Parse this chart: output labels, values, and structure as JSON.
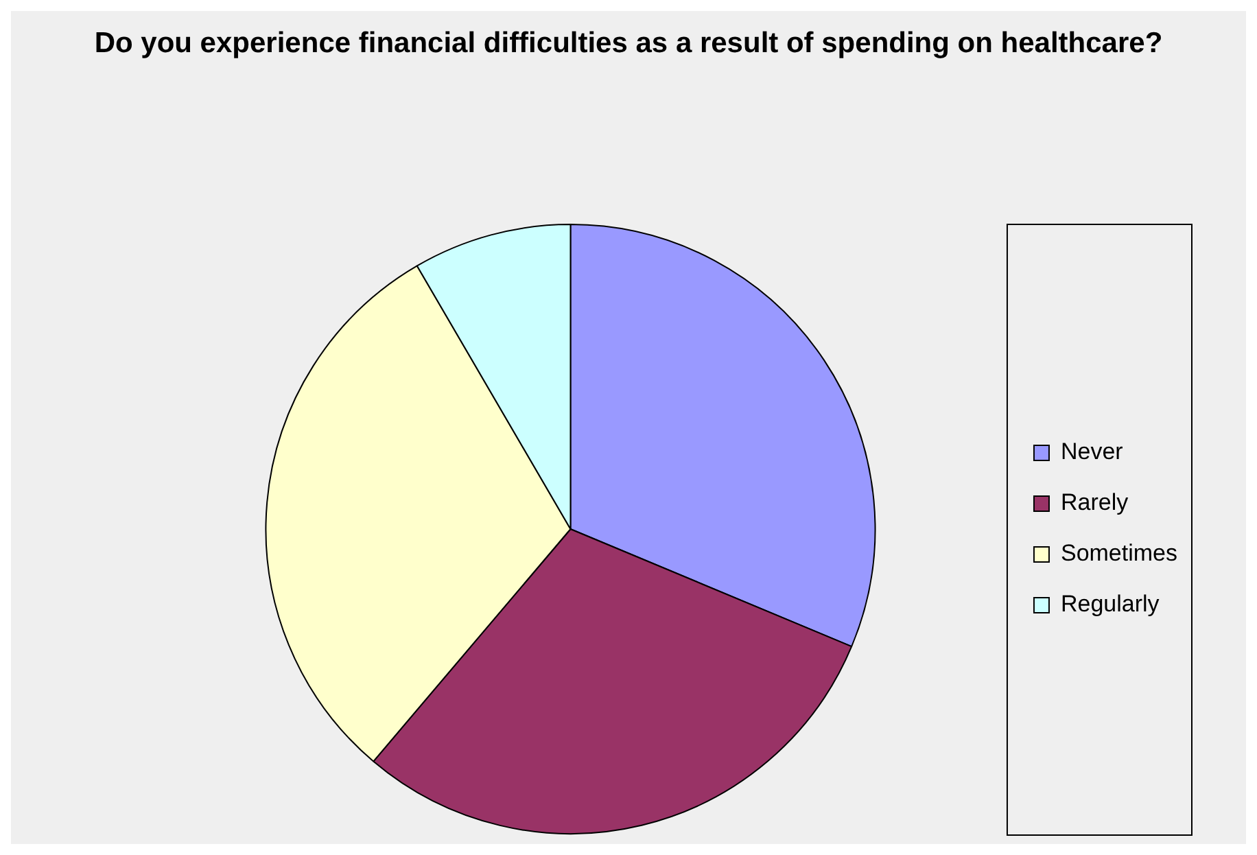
{
  "chart_data": {
    "type": "pie",
    "title": "Do you experience financial difficulties as a result of spending on healthcare?",
    "categories": [
      "Never",
      "Rarely",
      "Sometimes",
      "Regularly"
    ],
    "values": [
      31.3,
      29.9,
      30.4,
      8.4
    ],
    "colors": [
      "#9999ff",
      "#993366",
      "#ffffcc",
      "#ccffff"
    ],
    "legend": "right"
  }
}
